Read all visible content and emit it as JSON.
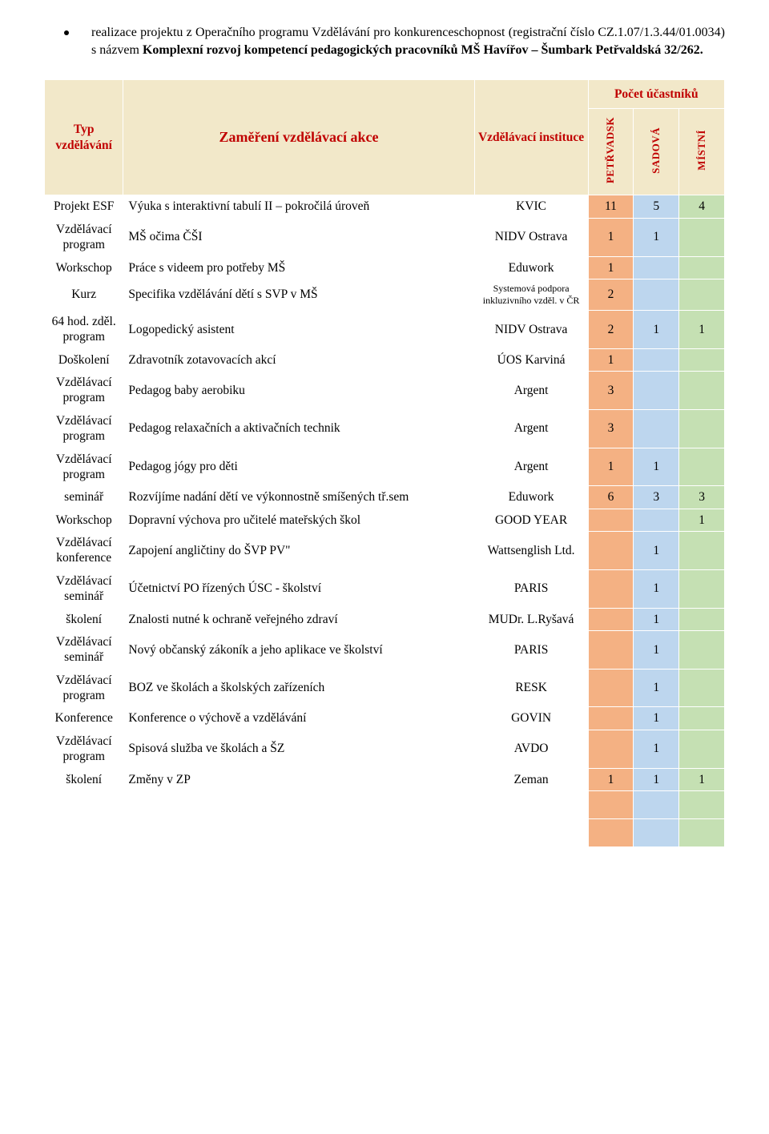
{
  "intro": {
    "line1_a": "realizace projektu z Operačního programu Vzdělávání pro konkurenceschopnost (registrační číslo CZ.1.07/1.3.44/01.0034) s názvem ",
    "line1_b": "Komplexní rozvoj kompetencí pedagogických pracovníků MŠ Havířov – Šumbark Petřvaldská 32/262."
  },
  "headers": {
    "count": "Počet účastníků",
    "type": "Typ vzdělávání",
    "focus": "Zaměření vzdělávací akce",
    "inst": "Vzdělávací instituce",
    "p": "PETŘVADSK",
    "s": "SADOVÁ",
    "m": "MÍSTNÍ"
  },
  "rows": [
    {
      "type": "Projekt ESF",
      "focus": "Výuka s interaktivní tabulí II – pokročilá úroveň",
      "inst": "KVIC",
      "p": "11",
      "s": "5",
      "m": "4"
    },
    {
      "type": "Vzdělávací program",
      "focus": "MŠ očima ČŠI",
      "inst": "NIDV Ostrava",
      "p": "1",
      "s": "1",
      "m": ""
    },
    {
      "type": "Workschop",
      "focus": "Práce s videem pro potřeby MŠ",
      "inst": "Eduwork",
      "p": "1",
      "s": "",
      "m": ""
    },
    {
      "type": "Kurz",
      "focus": "Specifika vzdělávání dětí s SVP v MŠ",
      "inst": "Systemová podpora inkluzivního vzděl. v ČR",
      "inst_small": true,
      "p": "2",
      "s": "",
      "m": ""
    },
    {
      "type": "64 hod. zděl. program",
      "focus": "Logopedický asistent",
      "inst": "NIDV Ostrava",
      "p": "2",
      "s": "1",
      "m": "1"
    },
    {
      "type": "Doškolení",
      "focus": "Zdravotník zotavovacích akcí",
      "inst": "ÚOS Karviná",
      "p": "1",
      "s": "",
      "m": ""
    },
    {
      "type": "Vzdělávací program",
      "focus": "Pedagog baby aerobiku",
      "inst": "Argent",
      "p": "3",
      "s": "",
      "m": ""
    },
    {
      "type": "Vzdělávací program",
      "focus": "Pedagog relaxačních a aktivačních technik",
      "inst": "Argent",
      "p": "3",
      "s": "",
      "m": ""
    },
    {
      "type": "Vzdělávací program",
      "focus": "Pedagog jógy pro děti",
      "inst": "Argent",
      "p": "1",
      "s": "1",
      "m": ""
    },
    {
      "type": "seminář",
      "focus": "Rozvíjíme nadání dětí ve výkonnostně smíšených tř.sem",
      "inst": "Eduwork",
      "p": "6",
      "s": "3",
      "m": "3"
    },
    {
      "type": "Workschop",
      "focus": "Dopravní výchova pro učitelé mateřských škol",
      "inst": "GOOD YEAR",
      "p": "",
      "s": "",
      "m": "1"
    },
    {
      "type": "Vzdělávací konference",
      "focus": "Zapojení angličtiny do ŠVP PV\"",
      "inst": "Wattsenglish Ltd.",
      "p": "",
      "s": "1",
      "m": ""
    },
    {
      "type": "Vzdělávací seminář",
      "focus": "Účetnictví PO řízených ÚSC - školství",
      "inst": "PARIS",
      "p": "",
      "s": "1",
      "m": ""
    },
    {
      "type": "školení",
      "focus": "Znalosti nutné k ochraně veřejného zdraví",
      "inst": "MUDr. L.Ryšavá",
      "p": "",
      "s": "1",
      "m": ""
    },
    {
      "type": "Vzdělávací seminář",
      "focus": "Nový občanský zákoník a jeho aplikace ve školství",
      "inst": "PARIS",
      "p": "",
      "s": "1",
      "m": ""
    },
    {
      "type": "Vzdělávací program",
      "focus": "BOZ ve školách a školských zařízeních",
      "inst": "RESK",
      "p": "",
      "s": "1",
      "m": ""
    },
    {
      "type": "Konference",
      "focus": "Konference o výchově a vzdělávání",
      "inst": "GOVIN",
      "p": "",
      "s": "1",
      "m": ""
    },
    {
      "type": "Vzdělávací program",
      "focus": "Spisová služba ve školách a ŠZ",
      "inst": "AVDO",
      "p": "",
      "s": "1",
      "m": ""
    },
    {
      "type": "školení",
      "focus": "Změny v ZP",
      "inst": "Zeman",
      "p": "1",
      "s": "1",
      "m": "1"
    },
    {
      "type": "",
      "focus": "",
      "inst": "",
      "p": "",
      "s": "",
      "m": ""
    },
    {
      "type": "",
      "focus": "",
      "inst": "",
      "p": "",
      "s": "",
      "m": ""
    }
  ],
  "colors": {
    "header_bg": "#f2e8c9",
    "header_text": "#c00000",
    "p_bg": "#f4b183",
    "s_bg": "#bdd6ee",
    "m_bg": "#c5e0b3"
  }
}
